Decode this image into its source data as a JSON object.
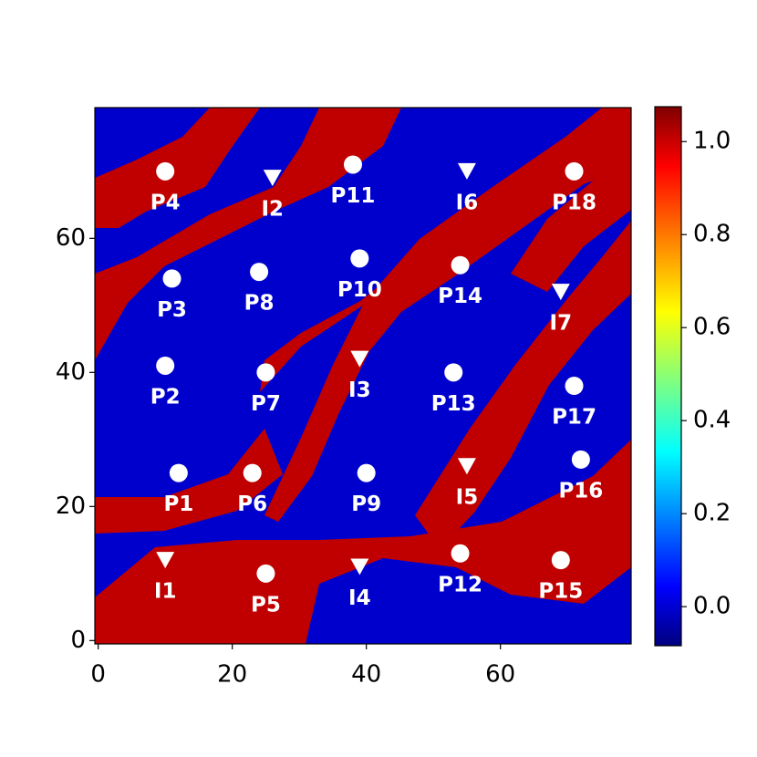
{
  "chart_data": {
    "type": "heatmap",
    "xlim": [
      -0.5,
      79.5
    ],
    "ylim": [
      -0.5,
      79.5
    ],
    "xticks": [
      0,
      20,
      40,
      60
    ],
    "yticks": [
      0,
      20,
      40,
      60
    ],
    "colormap": "jet",
    "clim": [
      -0.084,
      1.075
    ],
    "low_color": "#0000cd",
    "high_color": "#c00000",
    "colorbar_ticks": [
      {
        "value": 0.0,
        "label": "0.0"
      },
      {
        "value": 0.2,
        "label": "0.2"
      },
      {
        "value": 0.4,
        "label": "0.4"
      },
      {
        "value": 0.6,
        "label": "0.6"
      },
      {
        "value": 0.8,
        "label": "0.8"
      },
      {
        "value": 1.0,
        "label": "1.0"
      }
    ],
    "marker_color": "#ffffff",
    "wells": [
      {
        "label": "P4",
        "x": 10,
        "y": 70,
        "marker": "circle"
      },
      {
        "label": "I2",
        "x": 26,
        "y": 69,
        "marker": "triangle"
      },
      {
        "label": "P11",
        "x": 38,
        "y": 71,
        "marker": "circle"
      },
      {
        "label": "I6",
        "x": 55,
        "y": 70,
        "marker": "triangle"
      },
      {
        "label": "P18",
        "x": 71,
        "y": 70,
        "marker": "circle"
      },
      {
        "label": "P3",
        "x": 11,
        "y": 54,
        "marker": "circle"
      },
      {
        "label": "P8",
        "x": 24,
        "y": 55,
        "marker": "circle"
      },
      {
        "label": "P10",
        "x": 39,
        "y": 57,
        "marker": "circle"
      },
      {
        "label": "P14",
        "x": 54,
        "y": 56,
        "marker": "circle"
      },
      {
        "label": "I7",
        "x": 69,
        "y": 52,
        "marker": "triangle"
      },
      {
        "label": "P2",
        "x": 10,
        "y": 41,
        "marker": "circle"
      },
      {
        "label": "P7",
        "x": 25,
        "y": 40,
        "marker": "circle"
      },
      {
        "label": "I3",
        "x": 39,
        "y": 42,
        "marker": "triangle"
      },
      {
        "label": "P13",
        "x": 53,
        "y": 40,
        "marker": "circle"
      },
      {
        "label": "P17",
        "x": 71,
        "y": 38,
        "marker": "circle"
      },
      {
        "label": "P1",
        "x": 12,
        "y": 25,
        "marker": "circle"
      },
      {
        "label": "P6",
        "x": 23,
        "y": 25,
        "marker": "circle"
      },
      {
        "label": "P9",
        "x": 40,
        "y": 25,
        "marker": "circle"
      },
      {
        "label": "I5",
        "x": 55,
        "y": 26,
        "marker": "triangle"
      },
      {
        "label": "P16",
        "x": 72,
        "y": 27,
        "marker": "circle"
      },
      {
        "label": "I1",
        "x": 10,
        "y": 12,
        "marker": "triangle"
      },
      {
        "label": "P5",
        "x": 25,
        "y": 10,
        "marker": "circle"
      },
      {
        "label": "I4",
        "x": 39,
        "y": 11,
        "marker": "triangle"
      },
      {
        "label": "P12",
        "x": 54,
        "y": 13,
        "marker": "circle"
      },
      {
        "label": "P15",
        "x": 69,
        "y": 12,
        "marker": "circle"
      }
    ]
  }
}
